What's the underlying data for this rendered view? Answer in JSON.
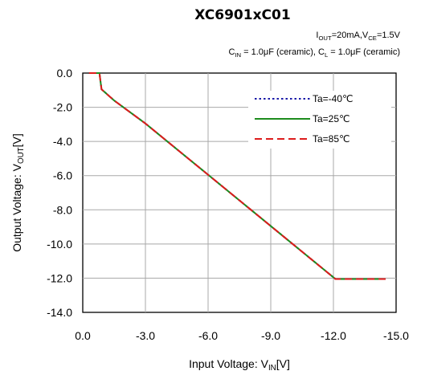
{
  "chart_data": {
    "type": "line",
    "title": "XC6901xC01",
    "conditions": [
      {
        "parts": [
          {
            "t": "I"
          },
          {
            "t": "OUT",
            "sub": true
          },
          {
            "t": "=20mA,V"
          },
          {
            "t": "CE",
            "sub": true
          },
          {
            "t": "=1.5V"
          }
        ]
      },
      {
        "parts": [
          {
            "t": "C"
          },
          {
            "t": "IN",
            "sub": true
          },
          {
            "t": " = 1.0μF (ceramic), C"
          },
          {
            "t": "L",
            "sub": true
          },
          {
            "t": " = 1.0μF (ceramic)"
          }
        ]
      }
    ],
    "xlabel": {
      "parts": [
        {
          "t": "Input Voltage: V"
        },
        {
          "t": "IN",
          "sub": true
        },
        {
          "t": "[V]"
        }
      ]
    },
    "ylabel": {
      "parts": [
        {
          "t": "Output Voltage: V"
        },
        {
          "t": "OUT",
          "sub": true
        },
        {
          "t": "[V]"
        }
      ]
    },
    "xlim": [
      0,
      -15
    ],
    "ylim": [
      -14,
      0
    ],
    "xticks": [
      0,
      -3,
      -6,
      -9,
      -12,
      -15
    ],
    "xtick_labels": [
      "0.0",
      "-3.0",
      "-6.0",
      "-9.0",
      "-12.0",
      "-15.0"
    ],
    "yticks": [
      0,
      -2,
      -4,
      -6,
      -8,
      -10,
      -12,
      -14
    ],
    "ytick_labels": [
      "0.0",
      "-2.0",
      "-4.0",
      "-6.0",
      "-8.0",
      "-10.0",
      "-12.0",
      "-14.0"
    ],
    "grid": true,
    "legend_position": "top-right",
    "series": [
      {
        "name": "Ta=-40℃",
        "color": "#1a1aa8",
        "dash": "dotted",
        "x": [
          -0.3,
          -0.8,
          -0.85,
          -0.9,
          -1.5,
          -3.0,
          -5.0,
          -6.0,
          -8.0,
          -10.0,
          -12.0,
          -12.1,
          -14.5
        ],
        "y": [
          0.0,
          0.0,
          -0.5,
          -0.95,
          -1.6,
          -2.95,
          -4.95,
          -5.95,
          -7.95,
          -9.95,
          -11.95,
          -12.05,
          -12.05
        ]
      },
      {
        "name": "Ta=25℃",
        "color": "#1e8c1e",
        "dash": "solid",
        "x": [
          -0.3,
          -0.8,
          -0.85,
          -0.9,
          -1.5,
          -3.0,
          -5.0,
          -6.0,
          -8.0,
          -10.0,
          -12.0,
          -12.1,
          -14.5
        ],
        "y": [
          0.0,
          0.0,
          -0.5,
          -0.95,
          -1.6,
          -2.95,
          -4.95,
          -5.95,
          -7.95,
          -9.95,
          -11.95,
          -12.05,
          -12.05
        ]
      },
      {
        "name": "Ta=85℃",
        "color": "#dd1c1c",
        "dash": "dashed",
        "x": [
          -0.3,
          -0.8,
          -0.85,
          -0.9,
          -1.5,
          -3.0,
          -5.0,
          -6.0,
          -8.0,
          -10.0,
          -12.0,
          -12.1,
          -14.5
        ],
        "y": [
          0.0,
          0.0,
          -0.5,
          -0.95,
          -1.6,
          -2.95,
          -4.95,
          -5.95,
          -7.95,
          -9.95,
          -11.95,
          -12.05,
          -12.05
        ]
      }
    ]
  }
}
